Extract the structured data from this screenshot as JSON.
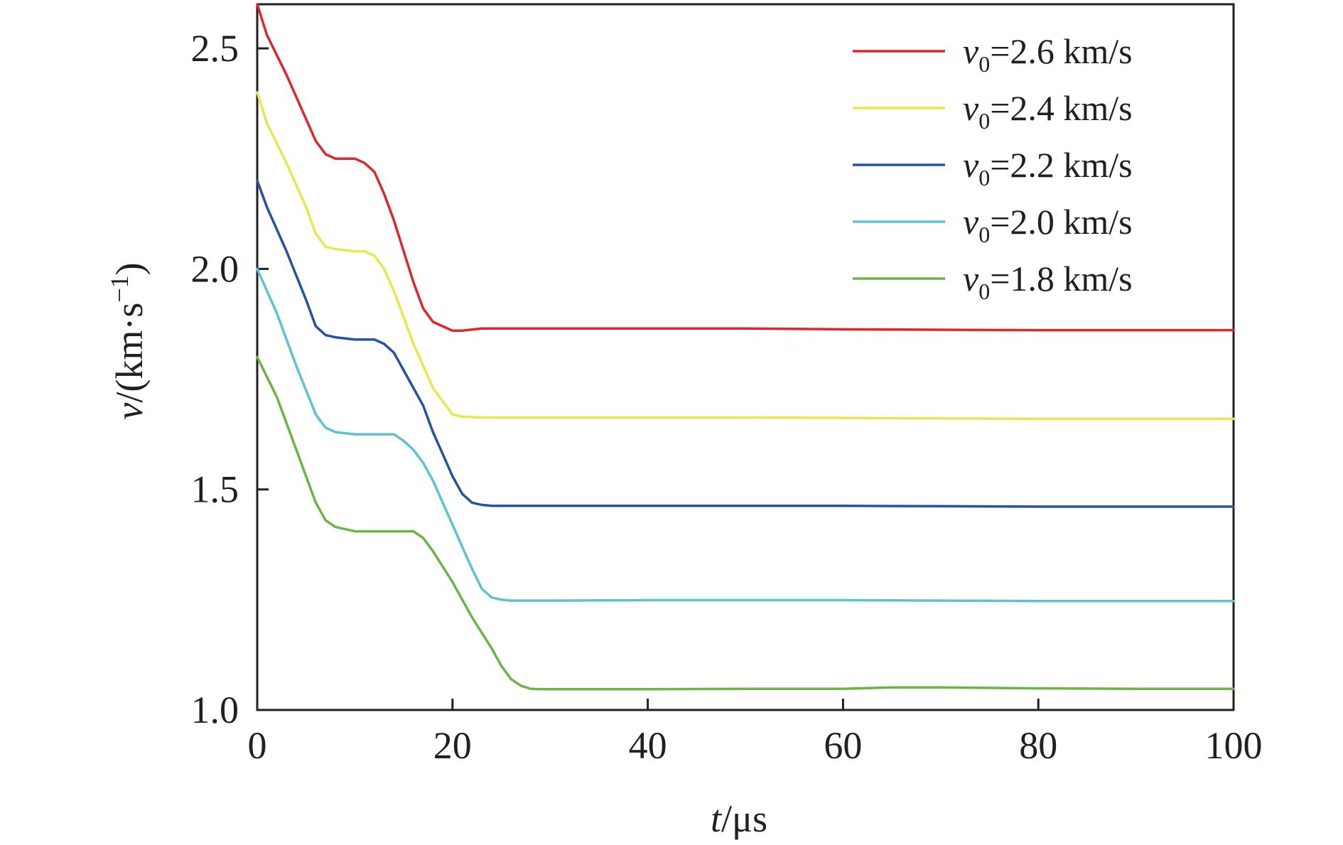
{
  "chart_data": {
    "type": "line",
    "title": "",
    "xlabel": {
      "symbol": "t",
      "unit": "/μs"
    },
    "ylabel": {
      "symbol": "v",
      "unit_prefix": "/(km·s",
      "unit_exp": "−1",
      "unit_suffix": ")"
    },
    "xlim": [
      0,
      100
    ],
    "ylim": [
      1.0,
      2.6
    ],
    "xticks": [
      0,
      20,
      40,
      60,
      80,
      100
    ],
    "yticks": [
      1.0,
      1.5,
      2.0,
      2.5
    ],
    "xtick_labels": [
      "0",
      "20",
      "40",
      "60",
      "80",
      "100"
    ],
    "ytick_labels": [
      "1.0",
      "1.5",
      "2.0",
      "2.5"
    ],
    "grid": false,
    "legend_position": "top-right",
    "series": [
      {
        "label_symbol": "v",
        "label_sub": "0",
        "label_rest": "=2.6 km/s",
        "color": "#e0262a",
        "x": [
          0,
          1,
          3,
          5,
          6,
          7,
          8,
          10,
          11,
          12,
          13,
          14,
          15,
          16,
          17,
          18,
          19,
          20,
          21,
          23,
          26,
          30,
          40,
          50,
          60,
          70,
          80,
          90,
          100
        ],
        "y": [
          2.6,
          2.53,
          2.44,
          2.34,
          2.29,
          2.26,
          2.25,
          2.25,
          2.24,
          2.22,
          2.17,
          2.11,
          2.04,
          1.97,
          1.91,
          1.88,
          1.87,
          1.86,
          1.86,
          1.865,
          1.865,
          1.865,
          1.865,
          1.865,
          1.863,
          1.862,
          1.861,
          1.861,
          1.861
        ]
      },
      {
        "label_symbol": "v",
        "label_sub": "0",
        "label_rest": "=2.4 km/s",
        "color": "#e6e84d",
        "x": [
          0,
          1,
          3,
          5,
          6,
          7,
          8,
          10,
          11,
          12,
          13,
          14,
          15,
          16,
          17,
          18,
          19,
          20,
          21,
          23,
          26,
          30,
          40,
          50,
          60,
          70,
          80,
          90,
          100
        ],
        "y": [
          2.4,
          2.33,
          2.24,
          2.14,
          2.08,
          2.05,
          2.045,
          2.04,
          2.04,
          2.03,
          2.0,
          1.95,
          1.89,
          1.83,
          1.78,
          1.73,
          1.7,
          1.67,
          1.665,
          1.663,
          1.663,
          1.663,
          1.663,
          1.663,
          1.662,
          1.661,
          1.66,
          1.66,
          1.66
        ]
      },
      {
        "label_symbol": "v",
        "label_sub": "0",
        "label_rest": "=2.2 km/s",
        "color": "#2752a0",
        "x": [
          0,
          1,
          3,
          5,
          6,
          7,
          8,
          10,
          12,
          13,
          14,
          15,
          16,
          17,
          18,
          19,
          20,
          21,
          22,
          23,
          24,
          26,
          30,
          40,
          50,
          60,
          70,
          80,
          90,
          100
        ],
        "y": [
          2.2,
          2.14,
          2.04,
          1.93,
          1.87,
          1.85,
          1.845,
          1.84,
          1.84,
          1.83,
          1.81,
          1.77,
          1.73,
          1.69,
          1.63,
          1.58,
          1.53,
          1.49,
          1.47,
          1.465,
          1.463,
          1.463,
          1.463,
          1.463,
          1.463,
          1.463,
          1.462,
          1.461,
          1.461,
          1.461
        ]
      },
      {
        "label_symbol": "v",
        "label_sub": "0",
        "label_rest": "=2.0 km/s",
        "color": "#5bc3d1",
        "x": [
          0,
          2,
          4,
          6,
          7,
          8,
          10,
          12,
          14,
          15,
          16,
          17,
          18,
          19,
          20,
          21,
          22,
          23,
          24,
          25,
          26,
          28,
          30,
          40,
          50,
          60,
          70,
          80,
          90,
          100
        ],
        "y": [
          2.0,
          1.9,
          1.78,
          1.67,
          1.64,
          1.63,
          1.625,
          1.625,
          1.625,
          1.61,
          1.59,
          1.56,
          1.52,
          1.47,
          1.42,
          1.37,
          1.32,
          1.275,
          1.255,
          1.25,
          1.248,
          1.248,
          1.248,
          1.249,
          1.249,
          1.249,
          1.248,
          1.247,
          1.247,
          1.247
        ]
      },
      {
        "label_symbol": "v",
        "label_sub": "0",
        "label_rest": "=1.8 km/s",
        "color": "#6ab543",
        "x": [
          0,
          2,
          4,
          6,
          7,
          8,
          10,
          12,
          14,
          16,
          17,
          18,
          20,
          22,
          24,
          25,
          26,
          27,
          28,
          29,
          30,
          35,
          40,
          50,
          60,
          65,
          70,
          80,
          90,
          100
        ],
        "y": [
          1.8,
          1.71,
          1.59,
          1.47,
          1.43,
          1.415,
          1.405,
          1.405,
          1.405,
          1.405,
          1.39,
          1.36,
          1.29,
          1.21,
          1.14,
          1.1,
          1.07,
          1.055,
          1.048,
          1.047,
          1.047,
          1.047,
          1.047,
          1.048,
          1.048,
          1.051,
          1.051,
          1.049,
          1.048,
          1.048
        ]
      }
    ]
  }
}
